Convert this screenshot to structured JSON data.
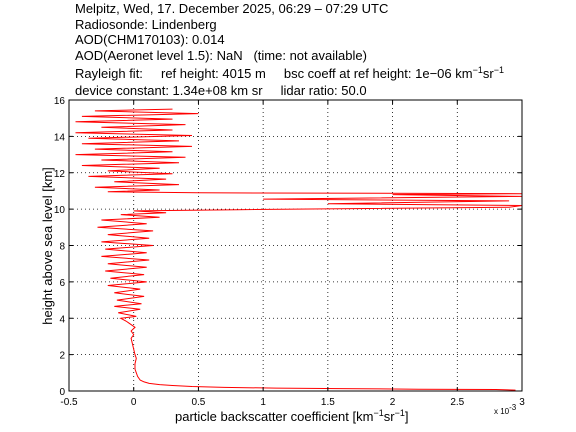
{
  "header": {
    "line1": "Melpitz, Wed, 17. December 2025, 06:29 – 07:29 UTC",
    "line2": "Radiosonde: Lindenberg",
    "line3": "AOD(CHM170103): 0.014",
    "line4": "AOD(Aeronet level 1.5): NaN   (time: not available)",
    "rayleigh_label": "Rayleigh fit:",
    "ref_height": "ref height: 4015 m",
    "bsc_coeff_prefix": "bsc coeff at ref height: 1e−06 km",
    "bsc_unit_exp1": "−1",
    "bsc_unit_sr": "sr",
    "bsc_unit_exp2": "−1",
    "device_constant": "device constant: 1.34e+08 km sr",
    "lidar_ratio": "lidar ratio: 50.0"
  },
  "xaxis": {
    "label_prefix": "particle backscatter coefficient [km",
    "label_exp1": "−1",
    "label_sr": "sr",
    "label_exp2": "−1",
    "label_suffix": "]",
    "multiplier": "x 10",
    "multiplier_exp": "-3"
  },
  "colors": {
    "profile": "#ff0000",
    "axes": "#000000",
    "grid": "#000000"
  },
  "chart_data": {
    "type": "line",
    "title": "",
    "xlabel": "particle backscatter coefficient [km⁻¹sr⁻¹]",
    "ylabel": "height above sea level [km]",
    "xlim": [
      -0.5,
      3
    ],
    "ylim": [
      0,
      16
    ],
    "x_scale_factor": "x 10^-3",
    "x_ticks": [
      -0.5,
      0,
      0.5,
      1,
      1.5,
      2,
      2.5,
      3
    ],
    "x_tick_labels": [
      "-0.5",
      "0",
      "0.5",
      "1",
      "1.5",
      "2",
      "2.5",
      "3"
    ],
    "y_ticks": [
      0,
      2,
      4,
      6,
      8,
      10,
      12,
      14,
      16
    ],
    "y_tick_labels": [
      "0",
      "2",
      "4",
      "6",
      "8",
      "10",
      "12",
      "14",
      "16"
    ],
    "grid": true,
    "series": [
      {
        "color": "#ff0000",
        "points": [
          [
            2.95,
            0.05
          ],
          [
            2.8,
            0.08
          ],
          [
            2.2,
            0.1
          ],
          [
            1.6,
            0.13
          ],
          [
            1.1,
            0.16
          ],
          [
            0.7,
            0.2
          ],
          [
            0.45,
            0.25
          ],
          [
            0.3,
            0.3
          ],
          [
            0.2,
            0.35
          ],
          [
            0.12,
            0.42
          ],
          [
            0.08,
            0.5
          ],
          [
            0.05,
            0.6
          ],
          [
            0.03,
            0.8
          ],
          [
            0.02,
            1.0
          ],
          [
            0.01,
            1.2
          ],
          [
            0.01,
            1.5
          ],
          [
            0.02,
            1.8
          ],
          [
            0.01,
            2.0
          ],
          [
            0.0,
            2.3
          ],
          [
            -0.01,
            2.6
          ],
          [
            -0.02,
            2.9
          ],
          [
            0.0,
            3.1
          ],
          [
            -0.02,
            3.3
          ],
          [
            0.01,
            3.5
          ],
          [
            -0.03,
            3.7
          ],
          [
            -0.06,
            3.85
          ],
          [
            -0.1,
            4.0
          ],
          [
            0.02,
            4.1
          ],
          [
            -0.12,
            4.3
          ],
          [
            0.05,
            4.5
          ],
          [
            -0.15,
            4.65
          ],
          [
            0.06,
            4.8
          ],
          [
            -0.13,
            5.0
          ],
          [
            0.08,
            5.2
          ],
          [
            -0.15,
            5.4
          ],
          [
            0.05,
            5.6
          ],
          [
            -0.2,
            5.8
          ],
          [
            0.1,
            6.0
          ],
          [
            -0.18,
            6.2
          ],
          [
            0.08,
            6.4
          ],
          [
            -0.22,
            6.6
          ],
          [
            0.1,
            6.8
          ],
          [
            -0.2,
            7.0
          ],
          [
            0.12,
            7.2
          ],
          [
            -0.25,
            7.4
          ],
          [
            0.1,
            7.6
          ],
          [
            -0.22,
            7.8
          ],
          [
            0.15,
            8.0
          ],
          [
            -0.25,
            8.2
          ],
          [
            0.12,
            8.4
          ],
          [
            -0.2,
            8.6
          ],
          [
            0.15,
            8.8
          ],
          [
            -0.28,
            9.0
          ],
          [
            0.1,
            9.2
          ],
          [
            -0.25,
            9.4
          ],
          [
            0.2,
            9.55
          ],
          [
            -0.1,
            9.7
          ],
          [
            0.25,
            9.8
          ],
          [
            0.0,
            9.9
          ],
          [
            0.8,
            9.97
          ],
          [
            2.9,
            10.1
          ],
          [
            3.0,
            10.2
          ],
          [
            1.5,
            10.3
          ],
          [
            2.9,
            10.45
          ],
          [
            1.0,
            10.55
          ],
          [
            3.0,
            10.7
          ],
          [
            2.0,
            10.8
          ],
          [
            3.0,
            10.85
          ],
          [
            0.5,
            10.9
          ],
          [
            -0.2,
            10.95
          ],
          [
            0.2,
            11.05
          ],
          [
            -0.3,
            11.2
          ],
          [
            0.35,
            11.35
          ],
          [
            -0.15,
            11.5
          ],
          [
            0.25,
            11.65
          ],
          [
            -0.35,
            11.8
          ],
          [
            0.3,
            11.95
          ],
          [
            -0.2,
            12.1
          ],
          [
            0.2,
            12.25
          ],
          [
            -0.4,
            12.4
          ],
          [
            0.35,
            12.55
          ],
          [
            -0.25,
            12.7
          ],
          [
            0.4,
            12.85
          ],
          [
            -0.45,
            13.0
          ],
          [
            0.3,
            13.15
          ],
          [
            -0.3,
            13.3
          ],
          [
            0.45,
            13.45
          ],
          [
            -0.4,
            13.6
          ],
          [
            0.35,
            13.75
          ],
          [
            -0.35,
            13.9
          ],
          [
            0.45,
            14.05
          ],
          [
            -0.45,
            14.2
          ],
          [
            0.3,
            14.35
          ],
          [
            -0.25,
            14.5
          ],
          [
            0.4,
            14.65
          ],
          [
            -0.45,
            14.8
          ],
          [
            0.3,
            14.95
          ],
          [
            -0.4,
            15.1
          ],
          [
            0.5,
            15.25
          ],
          [
            -0.3,
            15.4
          ],
          [
            0.3,
            15.5
          ]
        ]
      }
    ]
  }
}
